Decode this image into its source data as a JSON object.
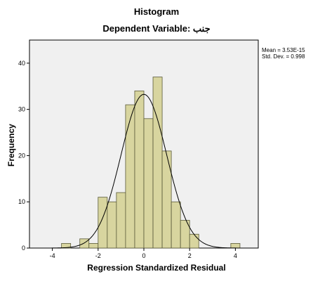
{
  "title": "Histogram",
  "subtitle": "Dependent Variable: جنب",
  "stats": {
    "mean": "Mean = 3.53E-15",
    "std": "Std. Dev. = 0.998"
  },
  "chart_data": {
    "type": "bar",
    "xlabel": "Regression Standardized Residual",
    "ylabel": "Frequency",
    "xlim": [
      -5,
      5
    ],
    "ylim": [
      0,
      45
    ],
    "x_ticks": [
      "-4",
      "-2",
      "0",
      "2",
      "4"
    ],
    "x_tick_values": [
      -4,
      -2,
      0,
      2,
      4
    ],
    "y_ticks": [
      "0",
      "10",
      "20",
      "30",
      "40"
    ],
    "y_tick_values": [
      0,
      10,
      20,
      30,
      40
    ],
    "bin_width": 0.4,
    "bins": [
      {
        "start": -3.6,
        "count": 1
      },
      {
        "start": -2.8,
        "count": 2
      },
      {
        "start": -2.4,
        "count": 1
      },
      {
        "start": -2.0,
        "count": 11
      },
      {
        "start": -1.6,
        "count": 10
      },
      {
        "start": -1.2,
        "count": 12
      },
      {
        "start": -0.8,
        "count": 31
      },
      {
        "start": -0.4,
        "count": 34
      },
      {
        "start": 0.0,
        "count": 28
      },
      {
        "start": 0.4,
        "count": 37
      },
      {
        "start": 0.8,
        "count": 21
      },
      {
        "start": 1.2,
        "count": 10
      },
      {
        "start": 1.6,
        "count": 6
      },
      {
        "start": 2.0,
        "count": 3
      },
      {
        "start": 3.8,
        "count": 1
      }
    ],
    "normal_curve": {
      "mean": 0.0,
      "std": 0.998,
      "n": 208
    },
    "colors": {
      "bar_fill": "#d8d59f",
      "bar_stroke": "#5a5a3a",
      "plot_bg": "#f0f0f0"
    },
    "grid": false
  }
}
